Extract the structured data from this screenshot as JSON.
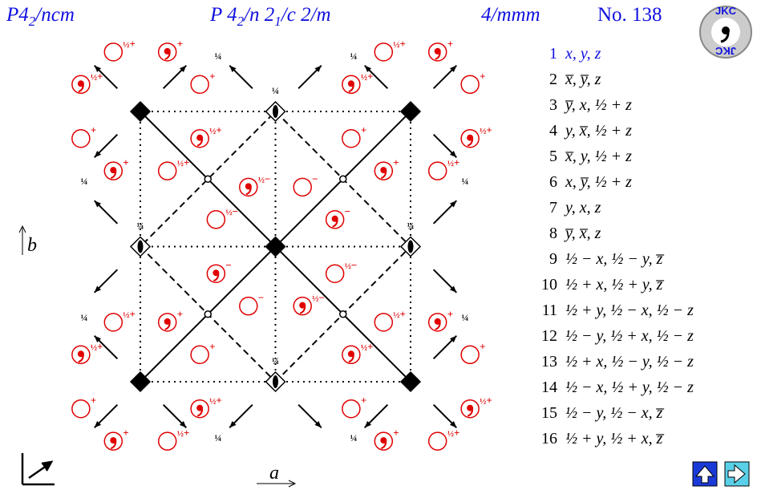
{
  "header": {
    "short": {
      "pre": "P4",
      "sub": "2",
      "post": "/ncm"
    },
    "full": {
      "pre": "P 4",
      "sub1": "2",
      "mid": "/n 2",
      "sub2": "1",
      "post": "/c 2/m"
    },
    "point_group": "4/mmm",
    "number": "No. 138",
    "logo": "JKC"
  },
  "diagram": {
    "axis_a": "a",
    "axis_b": "b",
    "labels": {
      "plus": "+",
      "minus": "−",
      "half": "½",
      "quarter": "¼"
    }
  },
  "positions": [
    {
      "n": "1",
      "text": "x, y, z"
    },
    {
      "n": "2",
      "text": "x̅, y̅, z"
    },
    {
      "n": "3",
      "text": "y̅, x, ½ + z"
    },
    {
      "n": "4",
      "text": "y, x̅, ½ + z"
    },
    {
      "n": "5",
      "text": "x̅, y, ½ + z"
    },
    {
      "n": "6",
      "text": "x, y̅, ½ + z"
    },
    {
      "n": "7",
      "text": "y, x, z"
    },
    {
      "n": "8",
      "text": "y̅, x̅, z"
    },
    {
      "n": "9",
      "text": "½ − x, ½ − y, z̅"
    },
    {
      "n": "10",
      "text": "½ + x, ½ + y, z̅"
    },
    {
      "n": "11",
      "text": "½ + y, ½ − x, ½ − z"
    },
    {
      "n": "12",
      "text": "½ − y, ½ + x, ½ − z"
    },
    {
      "n": "13",
      "text": "½ + x, ½ − y, ½ − z"
    },
    {
      "n": "14",
      "text": "½ − x, ½ + y, ½ − z"
    },
    {
      "n": "15",
      "text": "½ − y, ½ − x, z̅"
    },
    {
      "n": "16",
      "text": "½ + y, ½ + x, z̅"
    }
  ]
}
